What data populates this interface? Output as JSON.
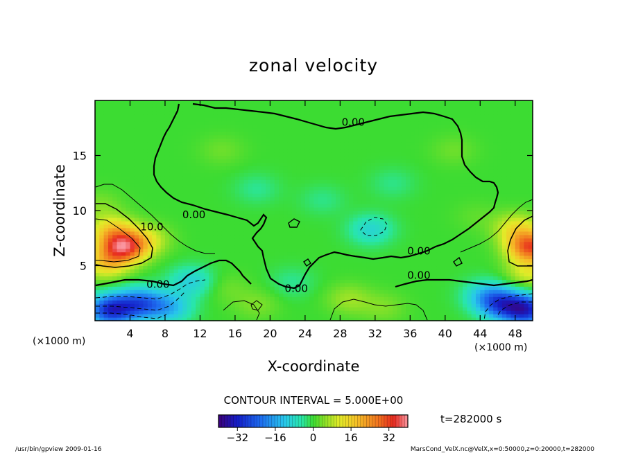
{
  "chart_data": {
    "type": "heatmap",
    "title": "zonal velocity",
    "xlabel": "X-coordinate",
    "ylabel": "Z-coordinate",
    "x_unit_left": "(×1000 m)",
    "x_unit_right": "(×1000 m)",
    "x_ticks": [
      4,
      8,
      12,
      16,
      20,
      24,
      28,
      32,
      36,
      40,
      44,
      48
    ],
    "y_ticks": [
      5,
      10,
      15
    ],
    "xlim": [
      0,
      50
    ],
    "ylim": [
      0,
      20
    ],
    "contour_labels": [
      {
        "text": "0.00",
        "x": 29.5,
        "y": 17.7
      },
      {
        "text": "0.00",
        "x": 11.3,
        "y": 9.3
      },
      {
        "text": "10.0",
        "x": 6.5,
        "y": 8.2
      },
      {
        "text": "0.00",
        "x": 7.2,
        "y": 3.0
      },
      {
        "text": "0.00",
        "x": 23.0,
        "y": 2.6
      },
      {
        "text": "0.00",
        "x": 37.0,
        "y": 6.0
      },
      {
        "text": "0.00",
        "x": 37.0,
        "y": 3.8
      }
    ],
    "contour_interval": "CONTOUR INTERVAL = 5.000E+00",
    "colorbar": {
      "range": [
        -40,
        40
      ],
      "ticks": [
        "−32",
        "−16",
        "0",
        "16",
        "32"
      ],
      "tick_values": [
        -32,
        -16,
        0,
        16,
        32
      ]
    },
    "time_label": "t=282000 s",
    "footer_left": "/usr/bin/gpview   2009-01-16",
    "footer_right": "MarsCond_VelX.nc@VelX,x=0:50000,z=0:20000,t=282000",
    "blobs": [
      {
        "x": 3.2,
        "y": 6.7,
        "v": 32
      },
      {
        "x": 2.0,
        "y": 8.2,
        "v": 14
      },
      {
        "x": 1.2,
        "y": 5.2,
        "v": 14
      },
      {
        "x": 6.0,
        "y": 7.4,
        "v": 9
      },
      {
        "x": 0.5,
        "y": 10.5,
        "v": 4
      },
      {
        "x": 1.8,
        "y": 1.0,
        "v": -30
      },
      {
        "x": 5.2,
        "y": 1.6,
        "v": -22
      },
      {
        "x": 8.5,
        "y": 1.2,
        "v": -13
      },
      {
        "x": 11.0,
        "y": 3.6,
        "v": -10
      },
      {
        "x": 49.8,
        "y": 6.7,
        "v": 30
      },
      {
        "x": 48.2,
        "y": 8.4,
        "v": 12
      },
      {
        "x": 49.6,
        "y": 4.3,
        "v": 10
      },
      {
        "x": 49.2,
        "y": 1.0,
        "v": -30
      },
      {
        "x": 46.3,
        "y": 1.6,
        "v": -22
      },
      {
        "x": 44.5,
        "y": 2.4,
        "v": -9
      },
      {
        "x": 31.5,
        "y": 8.3,
        "v": -9
      },
      {
        "x": 26.0,
        "y": 11.0,
        "v": -3.5
      },
      {
        "x": 34.0,
        "y": 12.5,
        "v": -3.5
      },
      {
        "x": 18.5,
        "y": 12.0,
        "v": -4
      },
      {
        "x": 14.5,
        "y": 15.5,
        "v": 3
      },
      {
        "x": 41.0,
        "y": 15.5,
        "v": 3
      },
      {
        "x": 29.0,
        "y": 2.0,
        "v": 6
      },
      {
        "x": 33.0,
        "y": 1.2,
        "v": 4
      },
      {
        "x": 15.0,
        "y": 3.0,
        "v": 3
      },
      {
        "x": 22.5,
        "y": 3.5,
        "v": -4
      },
      {
        "x": 18.5,
        "y": 1.5,
        "v": 4
      },
      {
        "x": 43.5,
        "y": 9.5,
        "v": 2
      }
    ]
  }
}
